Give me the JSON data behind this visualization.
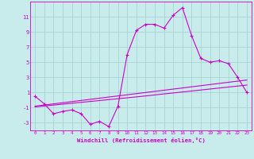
{
  "xlabel": "Windchill (Refroidissement éolien,°C)",
  "bg_color": "#c8ecec",
  "grid_color": "#aad4d4",
  "line_color": "#cc00cc",
  "x_hours": [
    0,
    1,
    2,
    3,
    4,
    5,
    6,
    7,
    8,
    9,
    10,
    11,
    12,
    13,
    14,
    15,
    16,
    17,
    18,
    19,
    20,
    21,
    22,
    23
  ],
  "windchill": [
    0.5,
    -0.5,
    -1.8,
    -1.5,
    -1.3,
    -1.8,
    -3.2,
    -2.8,
    -3.5,
    -0.8,
    6.0,
    9.2,
    10.0,
    10.0,
    9.5,
    11.2,
    12.2,
    8.5,
    5.5,
    5.0,
    5.2,
    4.8,
    3.0,
    1.0
  ],
  "linear1": [
    -0.8,
    -0.65,
    -0.5,
    -0.35,
    -0.2,
    -0.05,
    0.1,
    0.25,
    0.4,
    0.55,
    0.7,
    0.85,
    1.0,
    1.15,
    1.3,
    1.45,
    1.6,
    1.75,
    1.9,
    2.05,
    2.2,
    2.35,
    2.5,
    2.65
  ],
  "linear2": [
    -0.9,
    -0.78,
    -0.66,
    -0.54,
    -0.42,
    -0.3,
    -0.18,
    -0.06,
    0.06,
    0.18,
    0.3,
    0.42,
    0.55,
    0.68,
    0.81,
    0.94,
    1.07,
    1.2,
    1.33,
    1.46,
    1.59,
    1.72,
    1.85,
    1.98
  ],
  "ylim": [
    -4,
    13
  ],
  "yticks": [
    -3,
    -1,
    1,
    3,
    5,
    7,
    9,
    11
  ],
  "xlim": [
    -0.5,
    23.5
  ]
}
